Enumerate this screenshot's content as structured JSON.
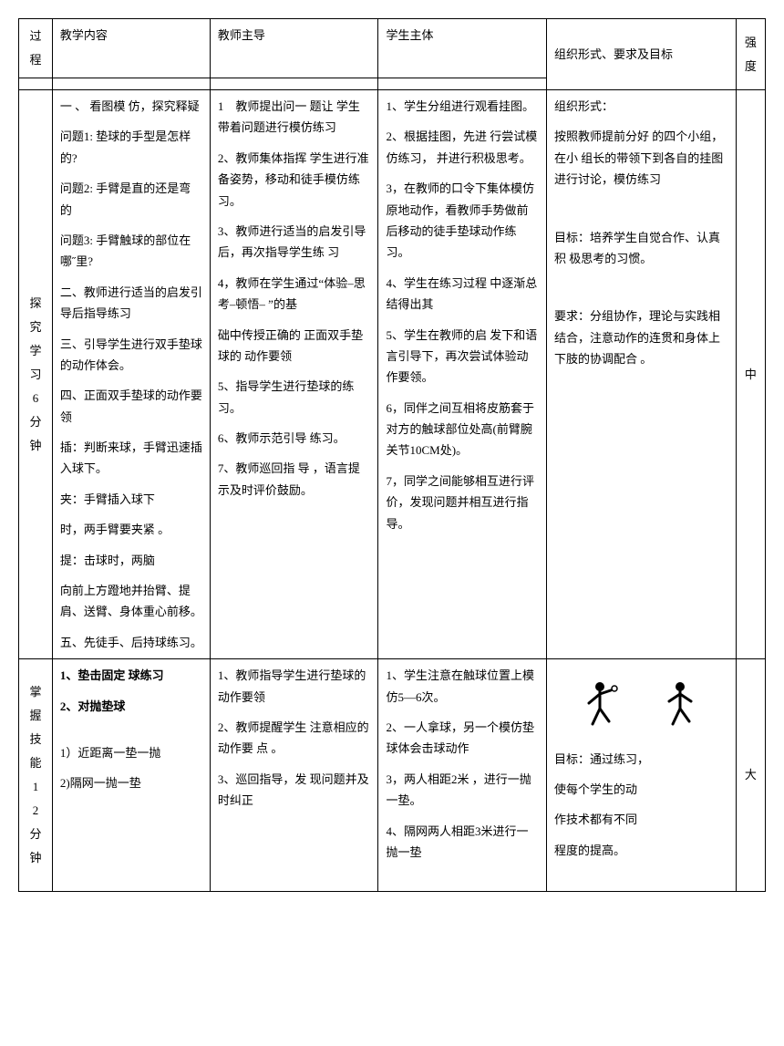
{
  "header": {
    "process": "过程",
    "content": "教学内容",
    "teacher": "教师主导",
    "student": "学生主体",
    "org": "组织形式、要求及目标",
    "intensity": "强度"
  },
  "row1": {
    "process": "探究学习6分钟",
    "content": {
      "p1": "一 、 看图模 仿，探究释疑",
      "p2": "问题1: 垫球的手型是怎样的?",
      "p3": "问题2: 手臂是直的还是弯的",
      "p4": "问题3: 手臂触球的部位在哪˝里?",
      "p5": "二、教师进行适当的启发引导后指导练习",
      "p6": "三、引导学生进行双手垫球的动作体会。",
      "p7": "四、正面双手垫球的动作要领",
      "p8": "插：判断来球，手臂迅速插入球下。",
      "p9": "夹：手臂插入球下",
      "p10": "时，两手臂要夹紧 。",
      "p11": "提：击球时，两脑",
      "p12": "向前上方蹬地并抬臂、提肩、送臂、身体重心前移。",
      "p13": "五、先徒手、后持球练习。"
    },
    "teacher": {
      "p1": "1　教师提出问一 题让 学生带着问题进行模仿练习",
      "p2": "2、教师集体指挥 学生进行准备姿势，移动和徒手模仿练习。",
      "p3": "3、教师进行适当的启发引导后，再次指导学生练 习",
      "p4": "4，教师在学生通过“体验–思考–顿悟– ”的基",
      "p5": "础中传授正确的 正面双手垫球的 动作要领",
      "p6": "5、指导学生进行垫球的练习。",
      "p7": "6、教师示范引导 练习。",
      "p8": "7、教师巡回指 导 ，语言提示及时评价鼓励。"
    },
    "student": {
      "p1": "1、学生分组进行观看挂图。",
      "p2": "2、根据挂图，先进 行尝试模仿练习， 并进行积极思考。",
      "p3": "3，在教师的口令下集体模仿原地动作，看教师手势做前后移动的徒手垫球动作练习。",
      "p4": "4、学生在练习过程 中逐渐总结得出其",
      "p5": "5、学生在教师的启 发下和语言引导下，再次尝试体验动作要领。",
      "p6": "6，同伴之间互相将皮筋套于对方的触球部位处高(前臂腕关节10CM处)。",
      "p7": "7，同学之间能够相互进行评价，发现问题并相互进行指导。"
    },
    "org": {
      "p1": "组织形式：",
      "p2": "按照教师提前分好 的四个小组，在小 组长的带领下到各自的挂图进行讨论，模仿练习",
      "p3": "目标：培养学生自觉合作、认真积 极思考的习惯。",
      "p4": "要求：分组协作，理论与实践相结合，注意动作的连贯和身体上下肢的协调配合 。"
    },
    "intensity": "中"
  },
  "row2": {
    "process": "掌握技能12分钟",
    "content": {
      "p1": "1、垫击固定 球练习",
      "p2": "2、对抛垫球",
      "p3": "1）近距离一垫一抛",
      "p4": "2)隔网一抛一垫"
    },
    "teacher": {
      "p1": "1、教师指导学生进行垫球的动作要领",
      "p2": "2、教师提醒学生 注意相应的动作要 点 。",
      "p3": "3、巡回指导，发 现问题并及时纠正"
    },
    "student": {
      "p1": "1、学生注意在触球位置上模仿5—6次。",
      "p2": "2、一人拿球，另一个模仿垫球体会击球动作",
      "p3": "3，两人相距2米 ，进行一抛一垫。",
      "p4": "4、隔网两人相距3米进行一抛一垫"
    },
    "org": {
      "figure_colors": {
        "stroke": "#000000",
        "fill": "#000000"
      },
      "p1": "目标：通过练习，",
      "p2": "使每个学生的动",
      "p3": "作技术都有不同",
      "p4": "程度的提高。"
    },
    "intensity": "大"
  }
}
